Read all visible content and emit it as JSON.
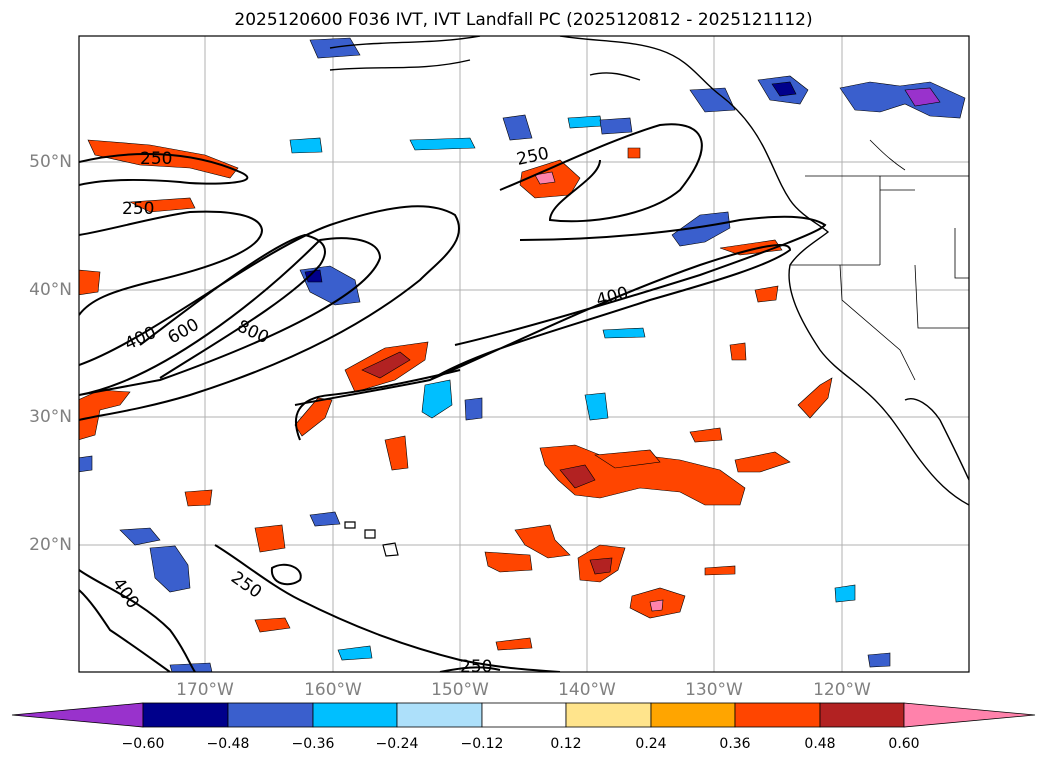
{
  "title": "2025120600 F036 IVT, IVT Landfall PC (2025120812 - 2025121112)",
  "map": {
    "lat_labels": [
      "50°N",
      "40°N",
      "30°N",
      "20°N"
    ],
    "lon_labels": [
      "170°W",
      "160°W",
      "150°W",
      "140°W",
      "130°W",
      "120°W"
    ],
    "contour_labels": [
      "250",
      "250",
      "250",
      "250",
      "250",
      "400",
      "400",
      "600",
      "800",
      "400"
    ]
  },
  "colorbar": {
    "ticks": [
      "−0.60",
      "−0.48",
      "−0.36",
      "−0.24",
      "−0.12",
      "0.12",
      "0.24",
      "0.36",
      "0.48",
      "0.60"
    ],
    "colors": [
      "#9932CC",
      "#00008B",
      "#3A5FCD",
      "#00BFFF",
      "#ADE0FA",
      "#FFFFFF",
      "#FFE48C",
      "#FFA500",
      "#FF4500",
      "#B22222",
      "#FF82AB"
    ]
  }
}
